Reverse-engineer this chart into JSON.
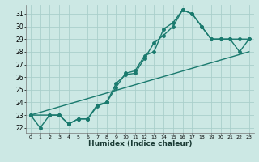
{
  "xlabel": "Humidex (Indice chaleur)",
  "background_color": "#cce8e4",
  "grid_color": "#aacfcb",
  "line_color": "#1a7a6e",
  "xlim": [
    -0.5,
    23.5
  ],
  "ylim": [
    21.6,
    31.7
  ],
  "yticks": [
    22,
    23,
    24,
    25,
    26,
    27,
    28,
    29,
    30,
    31
  ],
  "xticks": [
    0,
    1,
    2,
    3,
    4,
    5,
    6,
    7,
    8,
    9,
    10,
    11,
    12,
    13,
    14,
    15,
    16,
    17,
    18,
    19,
    20,
    21,
    22,
    23
  ],
  "line1_x": [
    0,
    1,
    2,
    3,
    4,
    5,
    6,
    7,
    8,
    9,
    10,
    11,
    12,
    13,
    14,
    15,
    16,
    17,
    18,
    19,
    20,
    21,
    22,
    23
  ],
  "line1_y": [
    23.0,
    22.0,
    23.0,
    23.0,
    22.3,
    22.7,
    22.7,
    23.7,
    24.0,
    25.2,
    26.3,
    26.5,
    27.7,
    28.0,
    29.8,
    30.3,
    31.3,
    31.0,
    30.0,
    29.0,
    29.0,
    29.0,
    28.0,
    29.0
  ],
  "line2_x": [
    0,
    2,
    3,
    4,
    5,
    6,
    7,
    8,
    9,
    10,
    11,
    12,
    13,
    14,
    15,
    16,
    17,
    18,
    19,
    20,
    21,
    22,
    23
  ],
  "line2_y": [
    23.0,
    23.0,
    23.0,
    22.3,
    22.7,
    22.7,
    23.8,
    24.0,
    25.5,
    26.2,
    26.3,
    27.5,
    28.7,
    29.3,
    30.0,
    31.3,
    31.0,
    30.0,
    29.0,
    29.0,
    29.0,
    29.0,
    29.0
  ],
  "line3_x": [
    0,
    23
  ],
  "line3_y": [
    23.0,
    28.0
  ],
  "marker_size": 2.5,
  "linewidth": 1.0
}
